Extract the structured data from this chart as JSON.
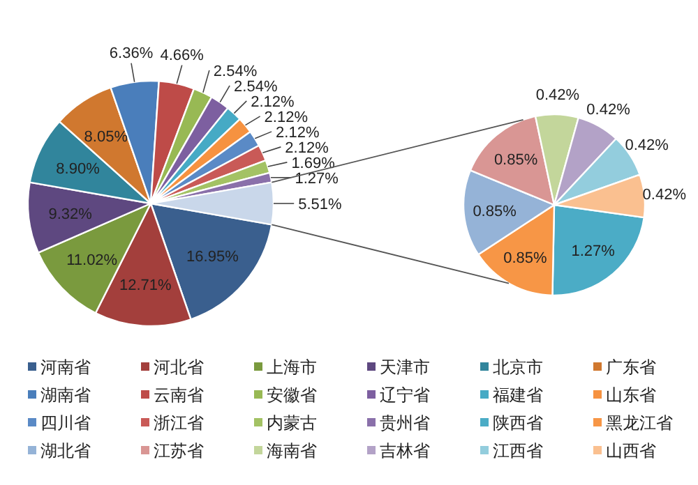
{
  "chart_data": [
    {
      "type": "pie",
      "legend": "bottom",
      "categories": [
        "河南省",
        "河北省",
        "上海市",
        "天津市",
        "北京市",
        "广东省",
        "湖南省",
        "云南省",
        "安徽省",
        "辽宁省",
        "福建省",
        "山东省",
        "四川省",
        "浙江省",
        "内蒙古",
        "贵州省",
        null
      ],
      "values": [
        16.95,
        12.71,
        11.02,
        9.32,
        8.9,
        8.05,
        6.36,
        4.66,
        2.54,
        2.54,
        2.12,
        2.12,
        2.12,
        2.12,
        1.69,
        1.27,
        5.51
      ],
      "value_labels": [
        "16.95%",
        "12.71%",
        "11.02%",
        "9.32%",
        "8.90%",
        "8.05%",
        "6.36%",
        "4.66%",
        "2.54%",
        "2.54%",
        "2.12%",
        "2.12%",
        "2.12%",
        "2.12%",
        "1.69%",
        "1.27%",
        "5.51%"
      ],
      "colors": [
        "#3a5f8e",
        "#a33f3c",
        "#7a9a3e",
        "#5e4880",
        "#31859c",
        "#d0782f",
        "#4a7ebb",
        "#be4b48",
        "#98b954",
        "#7d5fa0",
        "#46aac5",
        "#f69240",
        "#5a8ac6",
        "#c95a57",
        "#a3c264",
        "#8a70aa",
        "#c9d7ea"
      ]
    },
    {
      "type": "pie",
      "legend": "bottom",
      "categories": [
        "陕西省",
        "黑龙江省",
        "湖北省",
        "江苏省",
        "海南省",
        "吉林省",
        "江西省",
        "山西省"
      ],
      "values": [
        1.27,
        0.85,
        0.85,
        0.85,
        0.42,
        0.42,
        0.42,
        0.42
      ],
      "value_labels": [
        "1.27%",
        "0.85%",
        "0.85%",
        "0.85%",
        "0.42%",
        "0.42%",
        "0.42%",
        "0.42%"
      ],
      "colors": [
        "#4bacc6",
        "#f79646",
        "#95b3d7",
        "#d99694",
        "#c3d69b",
        "#b3a2c7",
        "#93cddd",
        "#fac090"
      ]
    }
  ]
}
